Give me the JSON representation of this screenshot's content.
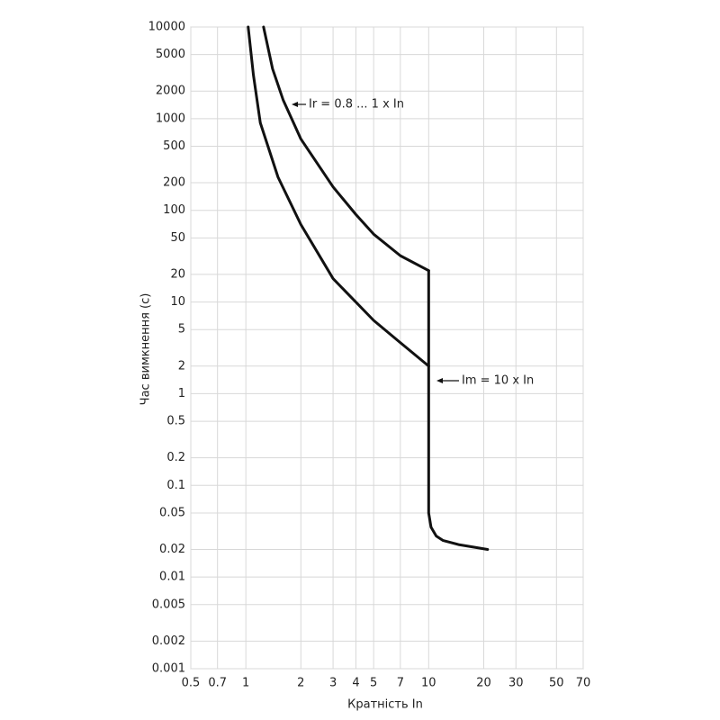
{
  "chart_data": {
    "type": "line",
    "x_label": "Кратність In",
    "y_label": "Час вимкнення (с)",
    "annotations": [
      "Ir = 0.8 ... 1 x In",
      "Im = 10 x In"
    ],
    "xscale": "log",
    "yscale": "log",
    "grid": true,
    "xlim": [
      0.5,
      70
    ],
    "ylim": [
      0.001,
      10000
    ],
    "xticks": [
      0.5,
      0.7,
      1,
      2,
      3,
      4,
      5,
      7,
      10,
      20,
      30,
      50,
      70
    ],
    "yticks": [
      0.001,
      0.002,
      0.005,
      0.01,
      0.02,
      0.05,
      0.1,
      0.2,
      0.5,
      1,
      2,
      5,
      10,
      20,
      50,
      100,
      200,
      500,
      1000,
      2000,
      5000,
      10000
    ],
    "series": [
      {
        "color": "#111111",
        "x": [
          1.25,
          1.4,
          1.6,
          2,
          3,
          4,
          5,
          7,
          10
        ],
        "values": [
          10000,
          3500,
          1600,
          600,
          180,
          90,
          55,
          32,
          22
        ]
      },
      {
        "color": "#111111",
        "x": [
          1.03,
          1.1,
          1.2,
          1.5,
          2,
          3,
          5,
          7,
          10
        ],
        "values": [
          10000,
          3000,
          900,
          230,
          70,
          18,
          6.3,
          3.6,
          2
        ]
      },
      {
        "color": "#111111",
        "x": [
          10,
          10,
          10.3,
          11,
          12,
          14.7,
          21
        ],
        "values": [
          22,
          0.05,
          0.035,
          0.028,
          0.025,
          0.0225,
          0.02
        ]
      }
    ]
  }
}
